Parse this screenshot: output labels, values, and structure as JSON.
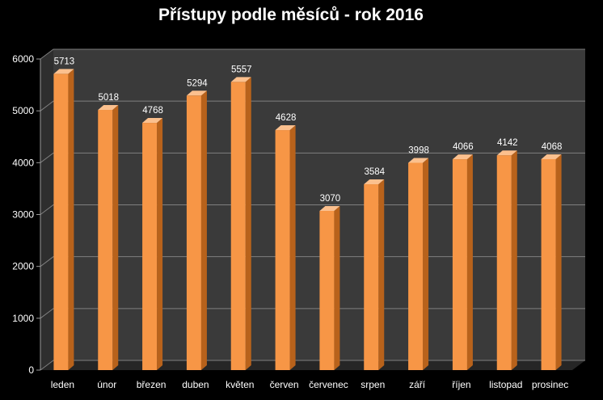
{
  "chart_data": {
    "type": "bar",
    "title": "Přístupy podle měsíců - rok 2016",
    "categories": [
      "leden",
      "únor",
      "březen",
      "duben",
      "květen",
      "červen",
      "červenec",
      "srpen",
      "září",
      "říjen",
      "listopad",
      "prosinec"
    ],
    "values": [
      5713,
      5018,
      4768,
      5294,
      5557,
      4628,
      3070,
      3584,
      3998,
      4066,
      4142,
      4068
    ],
    "ylim": [
      0,
      6000
    ],
    "yticks": [
      0,
      1000,
      2000,
      3000,
      4000,
      5000,
      6000
    ],
    "grid": true,
    "legend": "none",
    "colors": {
      "bar_front": "#F79646",
      "bar_side": "#B8621B",
      "bar_top": "#FBC08E",
      "plot_back": "#3a3a3a",
      "floor": "#262626",
      "gridline": "#7f7f7f",
      "background": "#000000",
      "text": "#ffffff"
    }
  }
}
